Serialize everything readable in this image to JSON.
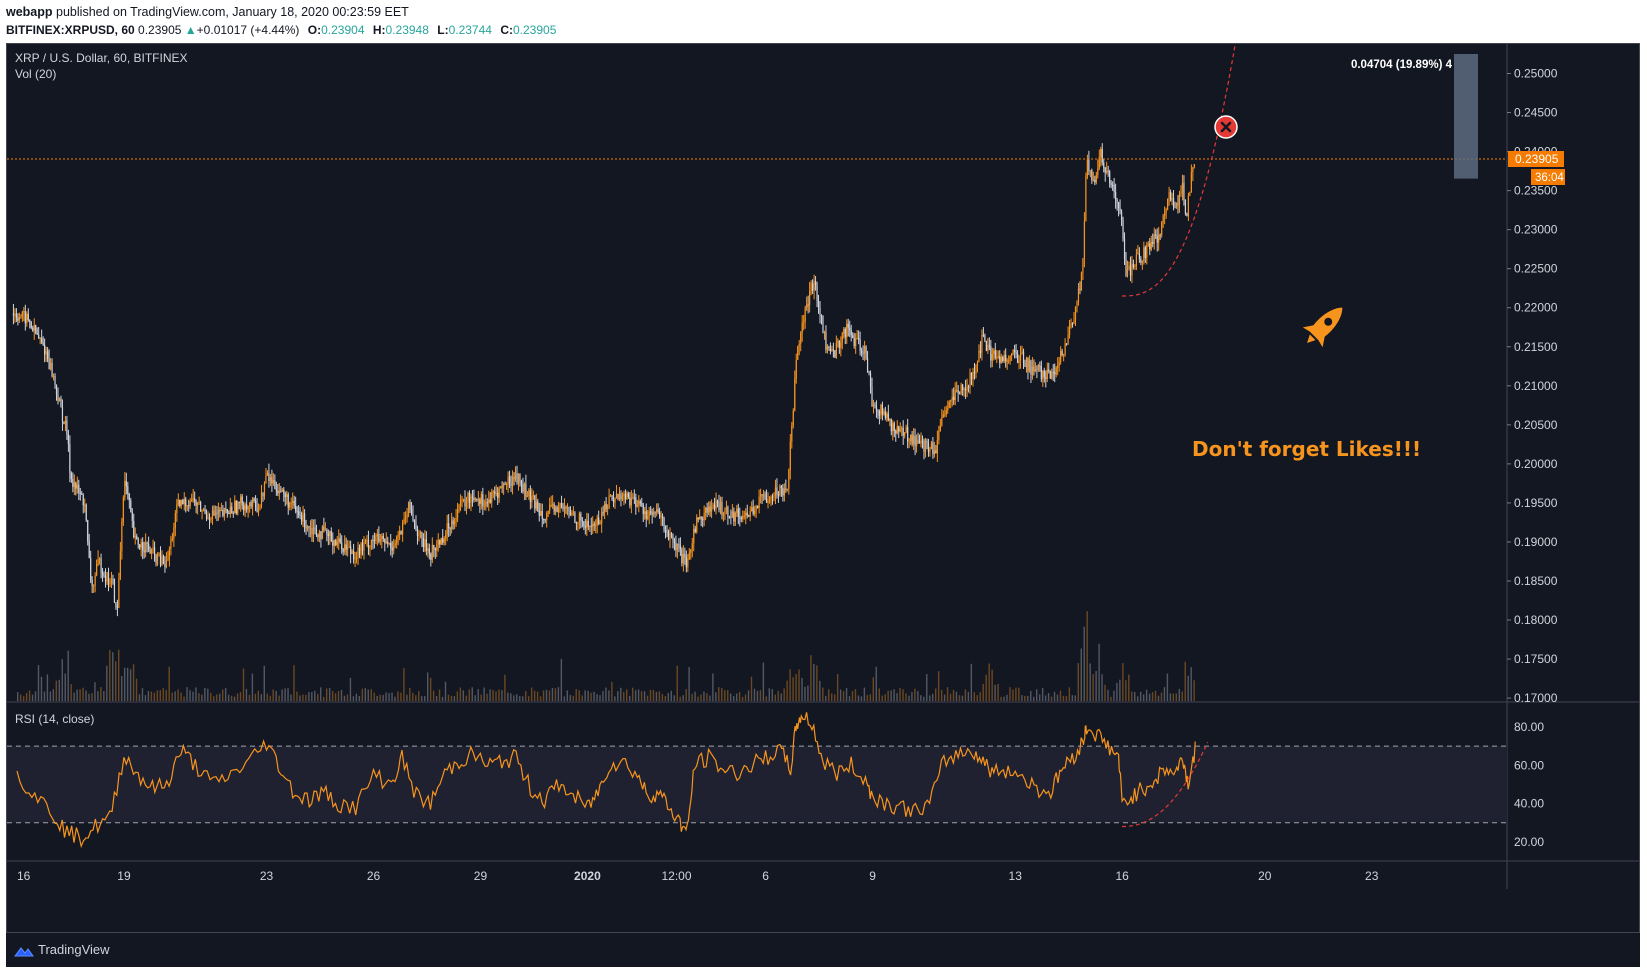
{
  "header": {
    "author": "webapp",
    "published_text": "published on TradingView.com, January 18, 2020 00:23:59 EET",
    "symbol": "BITFINEX:XRPUSD, 60",
    "price": "0.23905",
    "change": "+0.01017 (+4.44%)",
    "open_label": "O:",
    "open": "0.23904",
    "high_label": "H:",
    "high": "0.23948",
    "low_label": "L:",
    "low": "0.23744",
    "close_label": "C:",
    "close": "0.23905"
  },
  "chart": {
    "legend_title": "XRP / U.S. Dollar, 60, BITFINEX",
    "volume_label": "Vol (20)",
    "rsi_label": "RSI (14, close)",
    "last_price_tag": "0.23905",
    "countdown_tag": "36:04",
    "measure_label": "0.04704 (19.89%) 4",
    "annotation_text": "Don't forget Likes!!!",
    "rocket_icon": "rocket-icon",
    "close_marker_icon": "x-circle-icon",
    "footer_brand": "TradingView",
    "colors": {
      "background": "#131722",
      "candle_up": "#f7941d",
      "candle_down": "#d1d4dc",
      "last_price": "#f57c00",
      "curve": "#e53935",
      "annotation": "#f7941d",
      "measure_box": "#5d6b80"
    }
  },
  "chart_data": {
    "type": "candlestick",
    "timeframe": "60",
    "price_axis": {
      "ticks": [
        "0.25000",
        "0.24500",
        "0.24000",
        "0.23500",
        "0.23000",
        "0.22500",
        "0.22000",
        "0.21500",
        "0.21000",
        "0.20500",
        "0.20000",
        "0.19500",
        "0.19000",
        "0.18500",
        "0.18000",
        "0.17500",
        "0.17000"
      ],
      "ylim": [
        0.1695,
        0.2525
      ]
    },
    "rsi_axis": {
      "ticks": [
        "80.00",
        "60.00",
        "40.00",
        "20.00"
      ],
      "levels": [
        70,
        30
      ],
      "ylim": [
        10,
        92
      ]
    },
    "time_axis": {
      "ticks": [
        {
          "label": "16",
          "day": 0
        },
        {
          "label": "19",
          "day": 3
        },
        {
          "label": "23",
          "day": 7
        },
        {
          "label": "26",
          "day": 10
        },
        {
          "label": "29",
          "day": 13
        },
        {
          "label": "2020",
          "day": 16
        },
        {
          "label": "12:00",
          "day": 18.5
        },
        {
          "label": "6",
          "day": 21
        },
        {
          "label": "9",
          "day": 24
        },
        {
          "label": "13",
          "day": 28
        },
        {
          "label": "16",
          "day": 31
        },
        {
          "label": "20",
          "day": 35
        },
        {
          "label": "23",
          "day": 38
        }
      ]
    },
    "price_path": [
      [
        -0.1,
        0.2193
      ],
      [
        0.3,
        0.2185
      ],
      [
        0.8,
        0.2145
      ],
      [
        1.0,
        0.2115
      ],
      [
        1.2,
        0.2075
      ],
      [
        1.4,
        0.204
      ],
      [
        1.5,
        0.1985
      ],
      [
        1.7,
        0.1965
      ],
      [
        1.9,
        0.195
      ],
      [
        2.0,
        0.1885
      ],
      [
        2.1,
        0.184
      ],
      [
        2.3,
        0.1875
      ],
      [
        2.5,
        0.1855
      ],
      [
        2.7,
        0.1845
      ],
      [
        2.8,
        0.18
      ],
      [
        3.0,
        0.198
      ],
      [
        3.1,
        0.196
      ],
      [
        3.3,
        0.19
      ],
      [
        3.6,
        0.1895
      ],
      [
        3.9,
        0.188
      ],
      [
        4.2,
        0.187
      ],
      [
        4.5,
        0.1945
      ],
      [
        4.9,
        0.1955
      ],
      [
        5.3,
        0.1935
      ],
      [
        5.8,
        0.1935
      ],
      [
        6.3,
        0.195
      ],
      [
        6.8,
        0.1945
      ],
      [
        7.0,
        0.1985
      ],
      [
        7.4,
        0.1965
      ],
      [
        7.8,
        0.194
      ],
      [
        8.2,
        0.192
      ],
      [
        8.6,
        0.191
      ],
      [
        9.0,
        0.19
      ],
      [
        9.5,
        0.1885
      ],
      [
        10.0,
        0.1905
      ],
      [
        10.5,
        0.1895
      ],
      [
        10.8,
        0.1915
      ],
      [
        11.0,
        0.1945
      ],
      [
        11.3,
        0.1905
      ],
      [
        11.6,
        0.1885
      ],
      [
        12.0,
        0.191
      ],
      [
        12.4,
        0.1945
      ],
      [
        12.8,
        0.196
      ],
      [
        13.2,
        0.195
      ],
      [
        13.6,
        0.197
      ],
      [
        14.0,
        0.1985
      ],
      [
        14.4,
        0.1955
      ],
      [
        14.8,
        0.1935
      ],
      [
        15.2,
        0.1945
      ],
      [
        15.6,
        0.1935
      ],
      [
        16.0,
        0.192
      ],
      [
        16.3,
        0.1925
      ],
      [
        16.6,
        0.1955
      ],
      [
        17.0,
        0.196
      ],
      [
        17.4,
        0.195
      ],
      [
        17.7,
        0.1935
      ],
      [
        18.0,
        0.1935
      ],
      [
        18.3,
        0.1905
      ],
      [
        18.6,
        0.1885
      ],
      [
        18.8,
        0.1865
      ],
      [
        19.0,
        0.192
      ],
      [
        19.3,
        0.194
      ],
      [
        19.7,
        0.1945
      ],
      [
        20.1,
        0.1935
      ],
      [
        20.5,
        0.1935
      ],
      [
        20.9,
        0.1955
      ],
      [
        21.3,
        0.1965
      ],
      [
        21.6,
        0.197
      ],
      [
        21.75,
        0.2055
      ],
      [
        21.85,
        0.214
      ],
      [
        22.0,
        0.2175
      ],
      [
        22.2,
        0.221
      ],
      [
        22.35,
        0.2235
      ],
      [
        22.5,
        0.22
      ],
      [
        22.7,
        0.215
      ],
      [
        22.9,
        0.214
      ],
      [
        23.1,
        0.216
      ],
      [
        23.3,
        0.2175
      ],
      [
        23.5,
        0.2155
      ],
      [
        23.8,
        0.2145
      ],
      [
        24.0,
        0.2075
      ],
      [
        24.3,
        0.2065
      ],
      [
        24.6,
        0.2045
      ],
      [
        24.9,
        0.204
      ],
      [
        25.2,
        0.203
      ],
      [
        25.5,
        0.202
      ],
      [
        25.8,
        0.202
      ],
      [
        26.0,
        0.2065
      ],
      [
        26.3,
        0.2085
      ],
      [
        26.6,
        0.21
      ],
      [
        26.9,
        0.212
      ],
      [
        27.1,
        0.2165
      ],
      [
        27.3,
        0.214
      ],
      [
        27.6,
        0.2135
      ],
      [
        27.9,
        0.214
      ],
      [
        28.2,
        0.2135
      ],
      [
        28.5,
        0.212
      ],
      [
        28.8,
        0.2115
      ],
      [
        29.1,
        0.211
      ],
      [
        29.3,
        0.214
      ],
      [
        29.5,
        0.2165
      ],
      [
        29.7,
        0.2195
      ],
      [
        29.9,
        0.2255
      ],
      [
        30.0,
        0.239
      ],
      [
        30.2,
        0.2355
      ],
      [
        30.4,
        0.2395
      ],
      [
        30.6,
        0.237
      ],
      [
        30.8,
        0.234
      ],
      [
        31.0,
        0.231
      ],
      [
        31.1,
        0.224
      ],
      [
        31.3,
        0.2255
      ],
      [
        31.6,
        0.227
      ],
      [
        31.9,
        0.2285
      ],
      [
        32.1,
        0.23
      ],
      [
        32.3,
        0.2345
      ],
      [
        32.5,
        0.233
      ],
      [
        32.7,
        0.2355
      ],
      [
        32.8,
        0.231
      ],
      [
        32.95,
        0.238
      ],
      [
        33.05,
        0.239
      ]
    ],
    "volume_spikes": [
      [
        1.3,
        0.55
      ],
      [
        2.7,
        0.85
      ],
      [
        3.1,
        0.7
      ],
      [
        21.8,
        0.55
      ],
      [
        22.3,
        0.5
      ],
      [
        27.3,
        0.45
      ],
      [
        30.0,
        1.0
      ],
      [
        30.3,
        0.6
      ],
      [
        31.0,
        0.5
      ],
      [
        32.9,
        0.42
      ]
    ],
    "rsi_path": [
      [
        0.0,
        55
      ],
      [
        0.5,
        45
      ],
      [
        1.0,
        35
      ],
      [
        1.4,
        25
      ],
      [
        1.8,
        22
      ],
      [
        2.2,
        28
      ],
      [
        2.6,
        32
      ],
      [
        3.0,
        65
      ],
      [
        3.4,
        55
      ],
      [
        3.8,
        48
      ],
      [
        4.2,
        50
      ],
      [
        4.6,
        68
      ],
      [
        5.0,
        60
      ],
      [
        5.5,
        50
      ],
      [
        6.0,
        55
      ],
      [
        6.5,
        62
      ],
      [
        7.0,
        72
      ],
      [
        7.4,
        58
      ],
      [
        7.8,
        45
      ],
      [
        8.2,
        42
      ],
      [
        8.6,
        46
      ],
      [
        9.0,
        40
      ],
      [
        9.5,
        38
      ],
      [
        10.0,
        55
      ],
      [
        10.5,
        50
      ],
      [
        10.8,
        64
      ],
      [
        11.2,
        44
      ],
      [
        11.6,
        40
      ],
      [
        12.0,
        56
      ],
      [
        12.4,
        62
      ],
      [
        12.8,
        66
      ],
      [
        13.2,
        60
      ],
      [
        13.6,
        62
      ],
      [
        14.0,
        64
      ],
      [
        14.4,
        48
      ],
      [
        14.8,
        42
      ],
      [
        15.2,
        50
      ],
      [
        15.6,
        44
      ],
      [
        16.0,
        38
      ],
      [
        16.3,
        46
      ],
      [
        16.6,
        60
      ],
      [
        17.0,
        62
      ],
      [
        17.4,
        55
      ],
      [
        17.7,
        44
      ],
      [
        18.0,
        46
      ],
      [
        18.3,
        38
      ],
      [
        18.6,
        30
      ],
      [
        18.8,
        25
      ],
      [
        19.0,
        60
      ],
      [
        19.4,
        64
      ],
      [
        19.8,
        58
      ],
      [
        20.2,
        56
      ],
      [
        20.6,
        60
      ],
      [
        21.0,
        64
      ],
      [
        21.4,
        68
      ],
      [
        21.7,
        58
      ],
      [
        21.85,
        80
      ],
      [
        22.0,
        86
      ],
      [
        22.3,
        82
      ],
      [
        22.6,
        62
      ],
      [
        23.0,
        56
      ],
      [
        23.4,
        60
      ],
      [
        23.8,
        52
      ],
      [
        24.0,
        44
      ],
      [
        24.4,
        40
      ],
      [
        24.8,
        38
      ],
      [
        25.2,
        36
      ],
      [
        25.6,
        40
      ],
      [
        26.0,
        62
      ],
      [
        26.4,
        66
      ],
      [
        26.8,
        68
      ],
      [
        27.1,
        62
      ],
      [
        27.4,
        56
      ],
      [
        27.8,
        58
      ],
      [
        28.2,
        54
      ],
      [
        28.6,
        48
      ],
      [
        29.0,
        46
      ],
      [
        29.3,
        58
      ],
      [
        29.6,
        64
      ],
      [
        29.9,
        72
      ],
      [
        30.0,
        80
      ],
      [
        30.3,
        76
      ],
      [
        30.6,
        70
      ],
      [
        30.9,
        64
      ],
      [
        31.0,
        40
      ],
      [
        31.3,
        44
      ],
      [
        31.6,
        48
      ],
      [
        31.9,
        52
      ],
      [
        32.2,
        58
      ],
      [
        32.5,
        56
      ],
      [
        32.7,
        64
      ],
      [
        32.85,
        50
      ],
      [
        33.05,
        68
      ]
    ],
    "forecast_curve": "dashed red parabolic projection from price low (day 31.0, 0.2215) to above 0.2500",
    "measure_range": {
      "from": 0.23654,
      "to": 0.2525,
      "label": "0.04704 (19.89%) 4"
    },
    "last_price": 0.23905
  }
}
